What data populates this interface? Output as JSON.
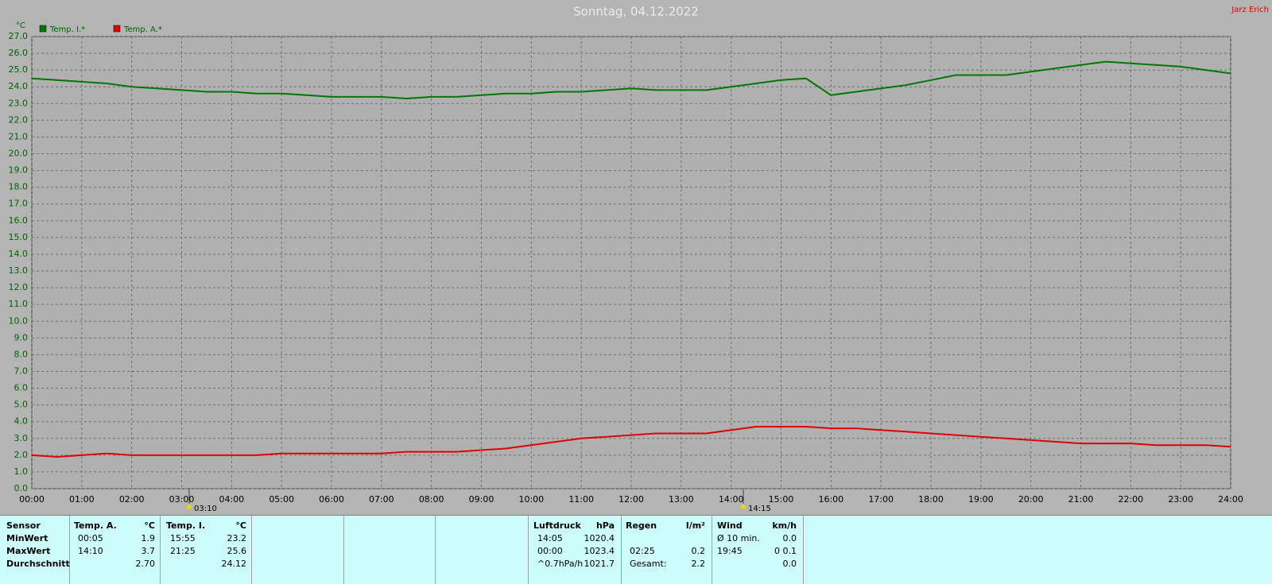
{
  "chart_data": {
    "type": "line",
    "title": "Sonntag, 04.12.2022",
    "corner_label": "Jarz Erich",
    "y_label": "°C",
    "grid": true,
    "annotations": [
      "03:10",
      "14:15"
    ],
    "x": [
      0,
      0.5,
      1,
      1.5,
      2,
      2.5,
      3,
      3.5,
      4,
      4.5,
      5,
      5.5,
      6,
      6.5,
      7,
      7.5,
      8,
      8.5,
      9,
      9.5,
      10,
      10.5,
      11,
      11.5,
      12,
      12.5,
      13,
      13.5,
      14,
      14.5,
      15,
      15.5,
      16,
      16.5,
      17,
      17.5,
      18,
      18.5,
      19,
      19.5,
      20,
      20.5,
      21,
      21.5,
      22,
      22.5,
      23,
      23.5,
      24
    ],
    "series": [
      {
        "name": "Temp. I.*",
        "color": "#007800",
        "values": [
          24.5,
          24.4,
          24.3,
          24.2,
          24.0,
          23.9,
          23.8,
          23.7,
          23.7,
          23.6,
          23.6,
          23.5,
          23.4,
          23.4,
          23.4,
          23.3,
          23.4,
          23.4,
          23.5,
          23.6,
          23.6,
          23.7,
          23.7,
          23.8,
          23.9,
          23.8,
          23.8,
          23.8,
          24.0,
          24.2,
          24.4,
          24.5,
          23.5,
          23.7,
          23.9,
          24.1,
          24.4,
          24.7,
          24.7,
          24.7,
          24.9,
          25.1,
          25.3,
          25.5,
          25.4,
          25.3,
          25.2,
          25.0,
          24.8
        ]
      },
      {
        "name": "Temp. A.*",
        "color": "#e00000",
        "values": [
          2.0,
          1.9,
          2.0,
          2.1,
          2.0,
          2.0,
          2.0,
          2.0,
          2.0,
          2.0,
          2.1,
          2.1,
          2.1,
          2.1,
          2.1,
          2.2,
          2.2,
          2.2,
          2.3,
          2.4,
          2.6,
          2.8,
          3.0,
          3.1,
          3.2,
          3.3,
          3.3,
          3.3,
          3.5,
          3.7,
          3.7,
          3.7,
          3.6,
          3.6,
          3.5,
          3.4,
          3.3,
          3.2,
          3.1,
          3.0,
          2.9,
          2.8,
          2.7,
          2.7,
          2.7,
          2.6,
          2.6,
          2.6,
          2.5
        ]
      }
    ],
    "xlim": [
      0,
      24
    ],
    "xticks": [
      {
        "value": 0,
        "label": "00:00"
      },
      {
        "value": 1,
        "label": "01:00"
      },
      {
        "value": 2,
        "label": "02:00"
      },
      {
        "value": 3,
        "label": "03:00"
      },
      {
        "value": 4,
        "label": "04:00"
      },
      {
        "value": 5,
        "label": "05:00"
      },
      {
        "value": 6,
        "label": "06:00"
      },
      {
        "value": 7,
        "label": "07:00"
      },
      {
        "value": 8,
        "label": "08:00"
      },
      {
        "value": 9,
        "label": "09:00"
      },
      {
        "value": 10,
        "label": "10:00"
      },
      {
        "value": 11,
        "label": "11:00"
      },
      {
        "value": 12,
        "label": "12:00"
      },
      {
        "value": 13,
        "label": "13:00"
      },
      {
        "value": 14,
        "label": "14:00"
      },
      {
        "value": 15,
        "label": "15:00"
      },
      {
        "value": 16,
        "label": "16:00"
      },
      {
        "value": 17,
        "label": "17:00"
      },
      {
        "value": 18,
        "label": "18:00"
      },
      {
        "value": 19,
        "label": "19:00"
      },
      {
        "value": 20,
        "label": "20:00"
      },
      {
        "value": 21,
        "label": "21:00"
      },
      {
        "value": 22,
        "label": "22:00"
      },
      {
        "value": 23,
        "label": "23:00"
      },
      {
        "value": 24,
        "label": "24:00"
      }
    ],
    "ylim": [
      0,
      27
    ],
    "yticks": [
      {
        "value": 0,
        "label": "0.0"
      },
      {
        "value": 1,
        "label": "1.0"
      },
      {
        "value": 2,
        "label": "2.0"
      },
      {
        "value": 3,
        "label": "3.0"
      },
      {
        "value": 4,
        "label": "4.0"
      },
      {
        "value": 5,
        "label": "5.0"
      },
      {
        "value": 6,
        "label": "6.0"
      },
      {
        "value": 7,
        "label": "7.0"
      },
      {
        "value": 8,
        "label": "8.0"
      },
      {
        "value": 9,
        "label": "9.0"
      },
      {
        "value": 10,
        "label": "10.0"
      },
      {
        "value": 11,
        "label": "11.0"
      },
      {
        "value": 12,
        "label": "12.0"
      },
      {
        "value": 13,
        "label": "13.0"
      },
      {
        "value": 14,
        "label": "14.0"
      },
      {
        "value": 15,
        "label": "15.0"
      },
      {
        "value": 16,
        "label": "16.0"
      },
      {
        "value": 17,
        "label": "17.0"
      },
      {
        "value": 18,
        "label": "18.0"
      },
      {
        "value": 19,
        "label": "19.0"
      },
      {
        "value": 20,
        "label": "20.0"
      },
      {
        "value": 21,
        "label": "21.0"
      },
      {
        "value": 22,
        "label": "22.0"
      },
      {
        "value": 23,
        "label": "23.0"
      },
      {
        "value": 24,
        "label": "24.0"
      },
      {
        "value": 25,
        "label": "25.0"
      },
      {
        "value": 26,
        "label": "26.0"
      },
      {
        "value": 27,
        "label": "27.0"
      }
    ]
  },
  "stats": {
    "left": {
      "headers": [
        "Sensor",
        "Temp. A.",
        "°C",
        "Temp. I.",
        "°C"
      ],
      "rows": [
        [
          "MinWert",
          "00:05",
          "1.9",
          "15:55",
          "23.2"
        ],
        [
          "MaxWert",
          "14:10",
          "3.7",
          "21:25",
          "25.6"
        ],
        [
          "Durchschnitt",
          null,
          "2.70",
          null,
          "24.12"
        ]
      ]
    },
    "right": {
      "headers": [
        "Luftdruck",
        "hPa",
        "Regen",
        "l/m²",
        "Wind",
        "km/h"
      ],
      "rows": [
        [
          "14:05",
          "1020.4",
          null,
          null,
          "Ø 10 min.",
          "0.0"
        ],
        [
          "00:00",
          "1023.4",
          "02:25",
          "0.2",
          "19:45",
          "0 0.1"
        ],
        [
          "^0.7hPa/h",
          "1021.7",
          "Gesamt:",
          "2.2",
          null,
          "0.0"
        ]
      ]
    }
  }
}
